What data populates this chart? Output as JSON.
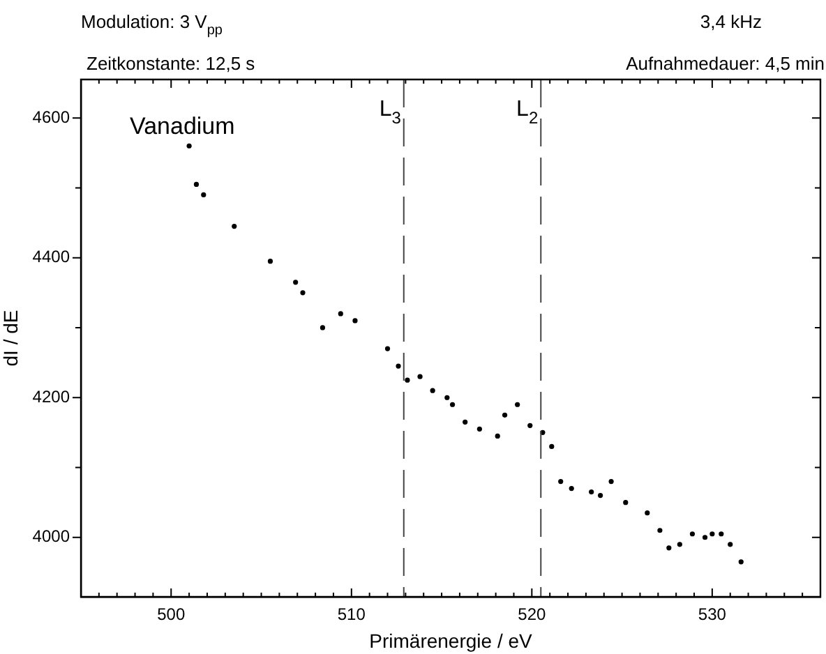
{
  "chart_data": {
    "type": "scatter",
    "xlabel": "Primärenergie / eV",
    "ylabel": "dI / dE",
    "marker": "circle",
    "annotations": [
      "Modulation: 3 V$_{pp}$",
      "3,4 kHz",
      "Zeitkonstante: 12,5 s",
      "Aufnahmedauer: 4,5 min",
      "Vanadium"
    ],
    "xlim": [
      495,
      536
    ],
    "ylim": [
      3915,
      4655
    ],
    "xticks": [
      {
        "value": 495,
        "label": null
      },
      {
        "value": 496,
        "label": null
      },
      {
        "value": 497,
        "label": null
      },
      {
        "value": 498,
        "label": null
      },
      {
        "value": 499,
        "label": null
      },
      500,
      {
        "value": 501,
        "label": null
      },
      {
        "value": 502,
        "label": null
      },
      {
        "value": 503,
        "label": null
      },
      {
        "value": 504,
        "label": null
      },
      {
        "value": 505,
        "label": null
      },
      {
        "value": 506,
        "label": null
      },
      {
        "value": 507,
        "label": null
      },
      {
        "value": 508,
        "label": null
      },
      {
        "value": 509,
        "label": null
      },
      510,
      {
        "value": 511,
        "label": null
      },
      {
        "value": 512,
        "label": null
      },
      {
        "value": 513,
        "label": null
      },
      {
        "value": 514,
        "label": null
      },
      {
        "value": 515,
        "label": null
      },
      {
        "value": 516,
        "label": null
      },
      {
        "value": 517,
        "label": null
      },
      {
        "value": 518,
        "label": null
      },
      {
        "value": 519,
        "label": null
      },
      520,
      {
        "value": 521,
        "label": null
      },
      {
        "value": 522,
        "label": null
      },
      {
        "value": 523,
        "label": null
      },
      {
        "value": 524,
        "label": null
      },
      {
        "value": 525,
        "label": null
      },
      {
        "value": 526,
        "label": null
      },
      {
        "value": 527,
        "label": null
      },
      {
        "value": 528,
        "label": null
      },
      {
        "value": 529,
        "label": null
      },
      530,
      {
        "value": 531,
        "label": null
      },
      {
        "value": 532,
        "label": null
      },
      {
        "value": 533,
        "label": null
      },
      {
        "value": 534,
        "label": null
      },
      {
        "value": 535,
        "label": null
      }
    ],
    "yticks": [
      4000,
      {
        "value": 4100,
        "label": null
      },
      4200,
      {
        "value": 4300,
        "label": null
      },
      4400,
      {
        "value": 4500,
        "label": null
      },
      4600
    ],
    "ref_lines": [
      {
        "axis": "x",
        "value": 512.9,
        "label": "L$_{3}$",
        "color": "#444444",
        "line_style": "dashed"
      },
      {
        "axis": "x",
        "value": 520.5,
        "label": "L$_{2}$",
        "color": "#444444",
        "line_style": "dashed"
      }
    ],
    "series": [
      {
        "color": "#000000",
        "x": [
          501.0,
          501.4,
          501.8,
          503.5,
          505.5,
          506.9,
          507.3,
          508.4,
          509.4,
          510.2,
          512.0,
          512.6,
          513.1,
          513.8,
          514.5,
          515.3,
          515.6,
          516.3,
          517.1,
          518.1,
          518.5,
          519.2,
          519.9,
          520.6,
          521.1,
          521.6,
          522.2,
          523.3,
          523.8,
          524.4,
          525.2,
          526.4,
          527.1,
          527.6,
          528.2,
          528.9,
          529.6,
          530.0,
          530.5,
          531.0,
          531.6
        ],
        "values": [
          4560,
          4505,
          4490,
          4445,
          4395,
          4365,
          4350,
          4300,
          4320,
          4310,
          4270,
          4245,
          4225,
          4230,
          4210,
          4200,
          4190,
          4165,
          4155,
          4145,
          4175,
          4190,
          4160,
          4150,
          4130,
          4080,
          4070,
          4065,
          4060,
          4080,
          4050,
          4035,
          4010,
          3985,
          3990,
          4005,
          4000,
          4005,
          4005,
          3990,
          3965
        ]
      }
    ]
  }
}
